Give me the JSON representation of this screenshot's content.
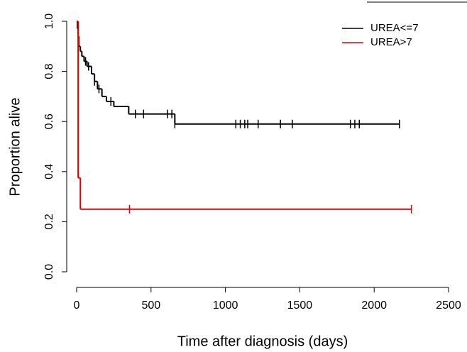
{
  "chart_data": {
    "type": "survival",
    "xlabel": "Time after diagnosis (days)",
    "ylabel": "Proportion alive",
    "xlim": [
      0,
      2500
    ],
    "xticks": [
      0,
      500,
      1000,
      1500,
      2000,
      2500
    ],
    "ylim": [
      0,
      1
    ],
    "yticks": [
      {
        "value": 0,
        "label": "0.0"
      },
      0.2,
      0.4,
      0.6,
      0.8,
      {
        "value": 1,
        "label": "1.0"
      }
    ],
    "legend": "top-right",
    "series": [
      {
        "name": "UREA<=7",
        "color": "#000000",
        "x": [
          0,
          5,
          10,
          15,
          25,
          35,
          50,
          70,
          100,
          120,
          140,
          170,
          200,
          250,
          350,
          660,
          2170
        ],
        "values": [
          1.0,
          0.97,
          0.94,
          0.9,
          0.88,
          0.86,
          0.84,
          0.82,
          0.79,
          0.76,
          0.73,
          0.7,
          0.68,
          0.66,
          0.63,
          0.59,
          0.59
        ],
        "censor_x": [
          60,
          80,
          120,
          150,
          230,
          395,
          450,
          610,
          640,
          660,
          1070,
          1100,
          1130,
          1150,
          1220,
          1370,
          1450,
          1840,
          1870,
          1900,
          2170
        ],
        "censor_y": [
          0.84,
          0.82,
          0.76,
          0.73,
          0.68,
          0.63,
          0.63,
          0.63,
          0.63,
          0.59,
          0.59,
          0.59,
          0.59,
          0.59,
          0.59,
          0.59,
          0.59,
          0.59,
          0.59,
          0.59,
          0.59
        ]
      },
      {
        "name": "UREA>7",
        "color": "#e00000",
        "x": [
          0,
          10,
          25,
          2250
        ],
        "values": [
          1.0,
          0.375,
          0.25,
          0.25
        ],
        "censor_x": [
          355,
          2250
        ],
        "censor_y": [
          0.25,
          0.25
        ]
      }
    ]
  }
}
